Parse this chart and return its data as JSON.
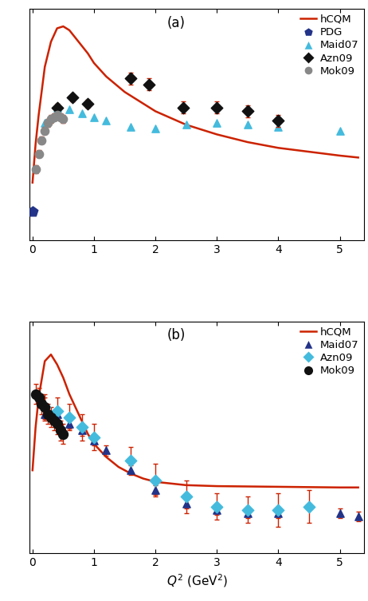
{
  "panel_a": {
    "title": "(a)",
    "hCQM_x": [
      0.0,
      0.05,
      0.1,
      0.2,
      0.3,
      0.4,
      0.5,
      0.6,
      0.7,
      0.8,
      0.9,
      1.0,
      1.2,
      1.5,
      1.8,
      2.0,
      2.5,
      3.0,
      3.5,
      4.0,
      4.5,
      5.0,
      5.3
    ],
    "hCQM_y": [
      -5,
      15,
      30,
      55,
      68,
      75,
      76,
      74,
      70,
      66,
      62,
      57,
      50,
      42,
      36,
      32,
      25,
      20,
      16,
      13,
      11,
      9,
      8
    ],
    "PDG_x": [
      0.0
    ],
    "PDG_y": [
      -20
    ],
    "Maid07_x": [
      0.2,
      0.4,
      0.6,
      0.8,
      1.0,
      1.2,
      1.6,
      2.0,
      2.5,
      3.0,
      3.5,
      4.0,
      5.0
    ],
    "Maid07_y": [
      26,
      34,
      33,
      31,
      29,
      27,
      24,
      23,
      25,
      26,
      25,
      24,
      22
    ],
    "Azn09_x": [
      0.4,
      0.65,
      0.9,
      1.6,
      1.9,
      2.45,
      3.0,
      3.5,
      4.0
    ],
    "Azn09_y": [
      34,
      39,
      36,
      49,
      46,
      34,
      34,
      32,
      27
    ],
    "Azn09_yerr": [
      2,
      2,
      2,
      3,
      3,
      3,
      3,
      3,
      3
    ],
    "Mok09_x": [
      0.05,
      0.1,
      0.15,
      0.2,
      0.25,
      0.3,
      0.35,
      0.4,
      0.45,
      0.5
    ],
    "Mok09_y": [
      2,
      10,
      17,
      22,
      26,
      28,
      29,
      30,
      29,
      28
    ],
    "Mok09_yerr": [
      2,
      2,
      2,
      2,
      2,
      2,
      2,
      2,
      2,
      2
    ],
    "xlim": [
      -0.05,
      5.4
    ],
    "ylim": [
      -35,
      85
    ]
  },
  "panel_b": {
    "title": "(b)",
    "xlabel": "Q^2 (GeV^2)",
    "hCQM_x": [
      0.0,
      0.05,
      0.1,
      0.2,
      0.3,
      0.4,
      0.5,
      0.6,
      0.7,
      0.8,
      0.9,
      1.0,
      1.2,
      1.4,
      1.6,
      1.8,
      2.0,
      2.5,
      3.0,
      3.5,
      4.0,
      4.5,
      5.0,
      5.3
    ],
    "hCQM_y": [
      5,
      18,
      27,
      38,
      40,
      37,
      33,
      28,
      24,
      20,
      16,
      13,
      9,
      6,
      4,
      2.5,
      1.5,
      0.5,
      0.2,
      0.1,
      0.0,
      -0.1,
      -0.2,
      -0.2
    ],
    "Maid07_x": [
      0.2,
      0.4,
      0.6,
      0.8,
      1.0,
      1.2,
      1.6,
      2.0,
      2.5,
      3.0,
      3.5,
      4.0,
      5.0,
      5.3
    ],
    "Maid07_y": [
      22,
      22,
      19,
      17,
      14,
      11,
      5,
      -1,
      -5,
      -7,
      -8,
      -8,
      -8,
      -9
    ],
    "Maid07_yerr": [
      1.5,
      1.5,
      1.5,
      1.5,
      1.5,
      1.5,
      1.5,
      1.5,
      1.5,
      1.5,
      1.5,
      1.5,
      1.5,
      1.5
    ],
    "Azn09_x": [
      0.2,
      0.4,
      0.6,
      0.8,
      1.0,
      1.6,
      2.0,
      2.5,
      3.0,
      3.5,
      4.0,
      4.5
    ],
    "Azn09_y": [
      24,
      23,
      21,
      18,
      15,
      8,
      2,
      -3,
      -6,
      -7,
      -7,
      -6
    ],
    "Azn09_yerr": [
      4,
      4,
      4,
      4,
      4,
      4,
      5,
      5,
      4,
      4,
      5,
      5
    ],
    "Mok09_x": [
      0.05,
      0.1,
      0.15,
      0.2,
      0.25,
      0.3,
      0.35,
      0.4,
      0.45,
      0.5
    ],
    "Mok09_y": [
      28,
      27,
      25,
      24,
      22,
      21,
      20,
      19,
      17,
      16
    ],
    "Mok09_yerr": [
      3,
      3,
      3,
      3,
      3,
      3,
      3,
      3,
      3,
      3
    ],
    "xlim": [
      -0.05,
      5.4
    ],
    "ylim": [
      -20,
      50
    ]
  },
  "colors": {
    "hCQM": "#cc2200",
    "PDG": "#223388",
    "Maid07_a": "#44bbdd",
    "Maid07_b": "#223388",
    "Azn09_a": "#111111",
    "Azn09_b": "#44bbdd",
    "Mok09_a": "#888888",
    "Mok09_b": "#111111"
  }
}
